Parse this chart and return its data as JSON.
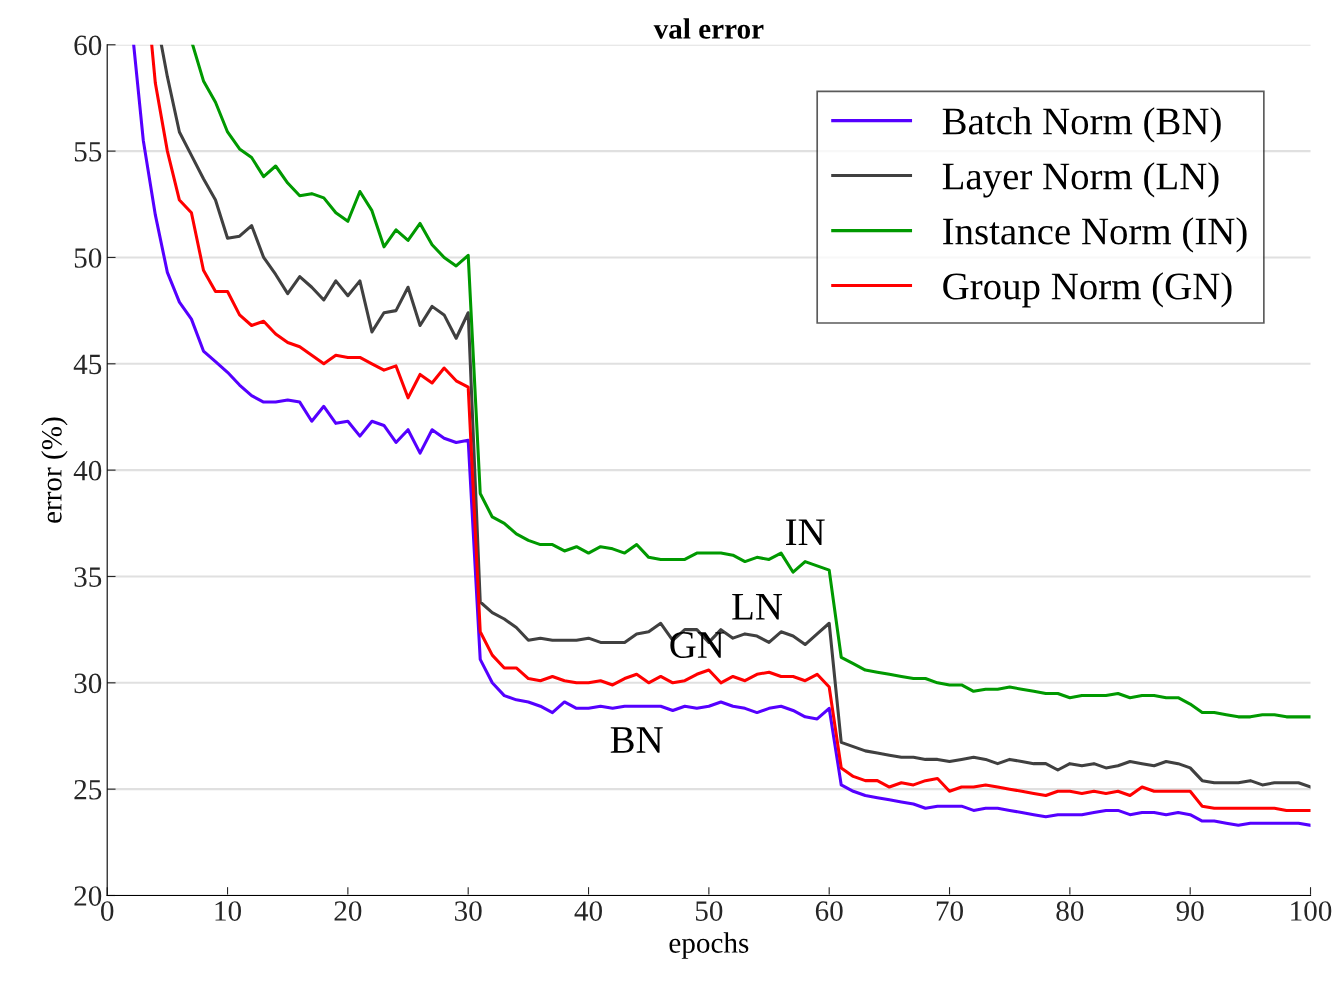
{
  "chart_data": {
    "type": "line",
    "title": "val error",
    "xlabel": "epochs",
    "ylabel": "error (%)",
    "xlim": [
      0,
      100
    ],
    "xticks": [
      0,
      10,
      20,
      30,
      40,
      50,
      60,
      70,
      80,
      90,
      100
    ],
    "ylim": [
      20,
      60
    ],
    "yticks": [
      20,
      25,
      30,
      35,
      40,
      45,
      50,
      55,
      60
    ],
    "grid": "y",
    "legend": "top right",
    "marker": "none",
    "line_style": "solid",
    "annotations": [
      {
        "text": "IN",
        "x": 58,
        "y": 35.7
      },
      {
        "text": "LN",
        "x": 54,
        "y": 32.2
      },
      {
        "text": "GN",
        "x": 49,
        "y": 30.4
      },
      {
        "text": "BN",
        "x": 44,
        "y": 28.9
      }
    ],
    "series": [
      {
        "name": "Batch Norm (BN)",
        "color": "#5500ff",
        "x": [
          2.2,
          3,
          4,
          5,
          6,
          7,
          8,
          9,
          10,
          11,
          12,
          13,
          14,
          15,
          16,
          17,
          18,
          19,
          20,
          21,
          22,
          23,
          24,
          25,
          26,
          27,
          28,
          29,
          30,
          31,
          32,
          33,
          34,
          35,
          36,
          37,
          38,
          39,
          40,
          41,
          42,
          43,
          44,
          45,
          46,
          47,
          48,
          49,
          50,
          51,
          52,
          53,
          54,
          55,
          56,
          57,
          58,
          59,
          60,
          61,
          62,
          63,
          64,
          65,
          66,
          67,
          68,
          69,
          70,
          71,
          72,
          73,
          74,
          75,
          76,
          77,
          78,
          79,
          80,
          81,
          82,
          83,
          84,
          85,
          86,
          87,
          88,
          89,
          90,
          91,
          92,
          93,
          94,
          95,
          96,
          97,
          98,
          99,
          100
        ],
        "values": [
          60,
          55.5,
          52,
          49.3,
          47.9,
          47.1,
          45.6,
          45.1,
          44.6,
          44.0,
          43.5,
          43.2,
          43.2,
          43.3,
          43.2,
          42.3,
          43.0,
          42.2,
          42.3,
          41.6,
          42.3,
          42.1,
          41.3,
          41.9,
          40.8,
          41.9,
          41.5,
          41.3,
          41.4,
          31.1,
          30.0,
          29.4,
          29.2,
          29.1,
          28.9,
          28.6,
          29.1,
          28.8,
          28.8,
          28.9,
          28.8,
          28.9,
          28.9,
          28.9,
          28.9,
          28.7,
          28.9,
          28.8,
          28.9,
          29.1,
          28.9,
          28.8,
          28.6,
          28.8,
          28.9,
          28.7,
          28.4,
          28.3,
          28.8,
          25.2,
          24.9,
          24.7,
          24.6,
          24.5,
          24.4,
          24.3,
          24.1,
          24.2,
          24.2,
          24.2,
          24.0,
          24.1,
          24.1,
          24.0,
          23.9,
          23.8,
          23.7,
          23.8,
          23.8,
          23.8,
          23.9,
          24.0,
          24.0,
          23.8,
          23.9,
          23.9,
          23.8,
          23.9,
          23.8,
          23.5,
          23.5,
          23.4,
          23.3,
          23.4,
          23.4,
          23.4,
          23.4,
          23.4,
          23.3
        ]
      },
      {
        "name": "Layer Norm (LN)",
        "color": "#404040",
        "x": [
          4.5,
          5,
          6,
          7,
          8,
          9,
          10,
          11,
          12,
          13,
          14,
          15,
          16,
          17,
          18,
          19,
          20,
          21,
          22,
          23,
          24,
          25,
          26,
          27,
          28,
          29,
          30,
          31,
          32,
          33,
          34,
          35,
          36,
          37,
          38,
          39,
          40,
          41,
          42,
          43,
          44,
          45,
          46,
          47,
          48,
          49,
          50,
          51,
          52,
          53,
          54,
          55,
          56,
          57,
          58,
          59,
          60,
          61,
          62,
          63,
          64,
          65,
          66,
          67,
          68,
          69,
          70,
          71,
          72,
          73,
          74,
          75,
          76,
          77,
          78,
          79,
          80,
          81,
          82,
          83,
          84,
          85,
          86,
          87,
          88,
          89,
          90,
          91,
          92,
          93,
          94,
          95,
          96,
          97,
          98,
          99,
          100
        ],
        "values": [
          60,
          58.5,
          55.9,
          54.8,
          53.7,
          52.7,
          50.9,
          51.0,
          51.5,
          50.0,
          49.2,
          48.3,
          49.1,
          48.6,
          48.0,
          48.9,
          48.2,
          48.9,
          46.5,
          47.4,
          47.5,
          48.6,
          46.8,
          47.7,
          47.3,
          46.2,
          47.4,
          33.8,
          33.3,
          33.0,
          32.6,
          32.0,
          32.1,
          32.0,
          32.0,
          32.0,
          32.1,
          31.9,
          31.9,
          31.9,
          32.3,
          32.4,
          32.8,
          32.0,
          32.5,
          32.5,
          31.9,
          32.5,
          32.1,
          32.3,
          32.2,
          31.9,
          32.4,
          32.2,
          31.8,
          32.3,
          32.8,
          27.2,
          27.0,
          26.8,
          26.7,
          26.6,
          26.5,
          26.5,
          26.4,
          26.4,
          26.3,
          26.4,
          26.5,
          26.4,
          26.2,
          26.4,
          26.3,
          26.2,
          26.2,
          25.9,
          26.2,
          26.1,
          26.2,
          26.0,
          26.1,
          26.3,
          26.2,
          26.1,
          26.3,
          26.2,
          26.0,
          25.4,
          25.3,
          25.3,
          25.3,
          25.4,
          25.2,
          25.3,
          25.3,
          25.3,
          25.1
        ]
      },
      {
        "name": "Instance Norm (IN)",
        "color": "#009900",
        "x": [
          7.1,
          8,
          9,
          10,
          11,
          12,
          13,
          14,
          15,
          16,
          17,
          18,
          19,
          20,
          21,
          22,
          23,
          24,
          25,
          26,
          27,
          28,
          29,
          30,
          31,
          32,
          33,
          34,
          35,
          36,
          37,
          38,
          39,
          40,
          41,
          42,
          43,
          44,
          45,
          46,
          47,
          48,
          49,
          50,
          51,
          52,
          53,
          54,
          55,
          56,
          57,
          58,
          59,
          60,
          61,
          62,
          63,
          64,
          65,
          66,
          67,
          68,
          69,
          70,
          71,
          72,
          73,
          74,
          75,
          76,
          77,
          78,
          79,
          80,
          81,
          82,
          83,
          84,
          85,
          86,
          87,
          88,
          89,
          90,
          91,
          92,
          93,
          94,
          95,
          96,
          97,
          98,
          99,
          100
        ],
        "values": [
          60,
          58.3,
          57.3,
          55.9,
          55.1,
          54.7,
          53.8,
          54.3,
          53.5,
          52.9,
          53.0,
          52.8,
          52.1,
          51.7,
          53.1,
          52.2,
          50.5,
          51.3,
          50.8,
          51.6,
          50.6,
          50.0,
          49.6,
          50.1,
          38.9,
          37.8,
          37.5,
          37.0,
          36.7,
          36.5,
          36.5,
          36.2,
          36.4,
          36.1,
          36.4,
          36.3,
          36.1,
          36.5,
          35.9,
          35.8,
          35.8,
          35.8,
          36.1,
          36.1,
          36.1,
          36.0,
          35.7,
          35.9,
          35.8,
          36.1,
          35.2,
          35.7,
          35.5,
          35.3,
          31.2,
          30.9,
          30.6,
          30.5,
          30.4,
          30.3,
          30.2,
          30.2,
          30.0,
          29.9,
          29.9,
          29.6,
          29.7,
          29.7,
          29.8,
          29.7,
          29.6,
          29.5,
          29.5,
          29.3,
          29.4,
          29.4,
          29.4,
          29.5,
          29.3,
          29.4,
          29.4,
          29.3,
          29.3,
          29.0,
          28.6,
          28.6,
          28.5,
          28.4,
          28.4,
          28.5,
          28.5,
          28.4,
          28.4,
          28.4
        ]
      },
      {
        "name": "Group Norm (GN)",
        "color": "#ff0000",
        "x": [
          3.7,
          4,
          5,
          6,
          7,
          8,
          9,
          10,
          11,
          12,
          13,
          14,
          15,
          16,
          17,
          18,
          19,
          20,
          21,
          22,
          23,
          24,
          25,
          26,
          27,
          28,
          29,
          30,
          31,
          32,
          33,
          34,
          35,
          36,
          37,
          38,
          39,
          40,
          41,
          42,
          43,
          44,
          45,
          46,
          47,
          48,
          49,
          50,
          51,
          52,
          53,
          54,
          55,
          56,
          57,
          58,
          59,
          60,
          61,
          62,
          63,
          64,
          65,
          66,
          67,
          68,
          69,
          70,
          71,
          72,
          73,
          74,
          75,
          76,
          77,
          78,
          79,
          80,
          81,
          82,
          83,
          84,
          85,
          86,
          87,
          88,
          89,
          90,
          91,
          92,
          93,
          94,
          95,
          96,
          97,
          98,
          99,
          100
        ],
        "values": [
          60,
          58.2,
          55.0,
          52.7,
          52.1,
          49.4,
          48.4,
          48.4,
          47.3,
          46.8,
          47.0,
          46.4,
          46.0,
          45.8,
          45.4,
          45.0,
          45.4,
          45.3,
          45.3,
          45.0,
          44.7,
          44.9,
          43.4,
          44.5,
          44.1,
          44.8,
          44.2,
          43.9,
          32.4,
          31.3,
          30.7,
          30.7,
          30.2,
          30.1,
          30.3,
          30.1,
          30.0,
          30.0,
          30.1,
          29.9,
          30.2,
          30.4,
          30.0,
          30.3,
          30.0,
          30.1,
          30.4,
          30.6,
          30.0,
          30.3,
          30.1,
          30.4,
          30.5,
          30.3,
          30.3,
          30.1,
          30.4,
          29.8,
          26.0,
          25.6,
          25.4,
          25.4,
          25.1,
          25.3,
          25.2,
          25.4,
          25.5,
          24.9,
          25.1,
          25.1,
          25.2,
          25.1,
          25.0,
          24.9,
          24.8,
          24.7,
          24.9,
          24.9,
          24.8,
          24.9,
          24.8,
          24.9,
          24.7,
          25.1,
          24.9,
          24.9,
          24.9,
          24.9,
          24.2,
          24.1,
          24.1,
          24.1,
          24.1,
          24.1,
          24.1,
          24.0,
          24.0,
          24.0
        ]
      }
    ]
  }
}
